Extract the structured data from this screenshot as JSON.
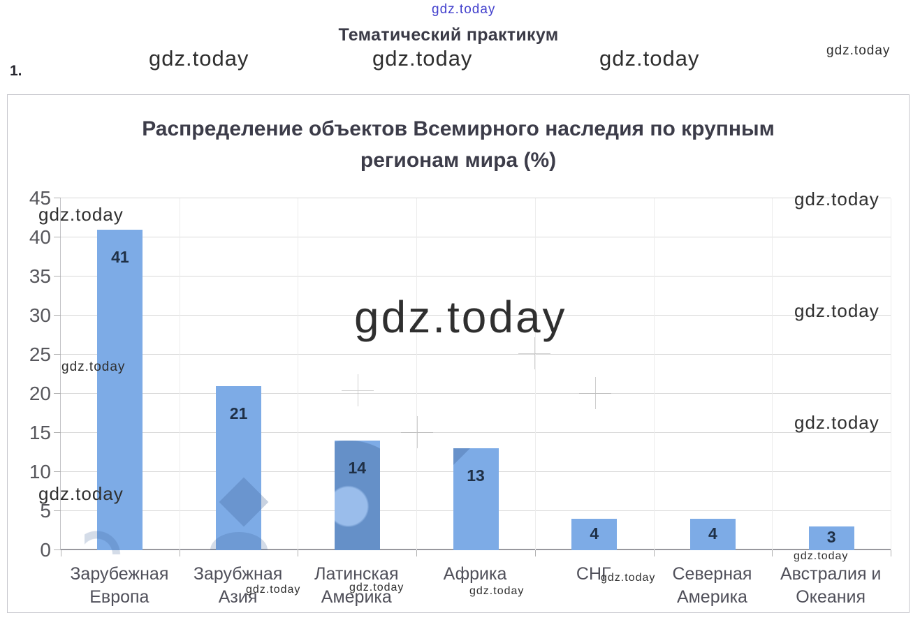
{
  "watermark": "gdz.today",
  "header": {
    "title": "Тематический практикум",
    "question_number": "1."
  },
  "chart_data": {
    "type": "bar",
    "title": "Распределение объектов Всемирного наследия по крупным регионам мира (%)",
    "categories": [
      "Зарубежная Европа",
      "Зарубжная Азия",
      "Латинская Америка",
      "Африка",
      "СНГ",
      "Северная Америка",
      "Австралия и Океания"
    ],
    "values": [
      41,
      21,
      14,
      13,
      4,
      4,
      3
    ],
    "xlabel": "",
    "ylabel": "",
    "ylim": [
      0,
      45
    ],
    "ytick_step": 5,
    "grid": true,
    "legend": "none",
    "bar_color": "#7DABE6",
    "value_label_color": "#1f3046",
    "axis_label_color": "#57575c",
    "gridline_color": "#d9d9d9"
  }
}
